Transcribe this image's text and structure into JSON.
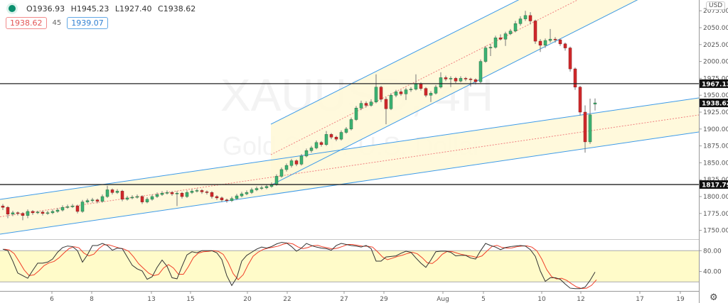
{
  "symbol_watermark": {
    "line1": "XAUUSD, 4H",
    "line2": "Gold Spot / U.S. Dollar"
  },
  "legend": {
    "status_icon": "green-dot-icon",
    "open": "O1936.93",
    "high": "H1945.23",
    "low": "L1927.40",
    "close": "C1938.62",
    "bid": "1938.62",
    "spread": "45",
    "ask": "1939.07"
  },
  "currency": "USD",
  "settings_icon": "gear-icon",
  "colors": {
    "up": "#3bb273",
    "down": "#d0282b",
    "channel_line": "#3d9be9",
    "midline": "#f08080",
    "channel_fill": "#fff8d6",
    "stoch_band": "#fffbc9",
    "k_line": "#333333",
    "d_line": "#f0402a"
  },
  "chart_data": [
    {
      "type": "candlestick",
      "price_axis": {
        "ticks": [
          "2075.00",
          "2050.00",
          "2025.00",
          "2000.00",
          "1975.00",
          "1950.00",
          "1925.00",
          "1900.00",
          "1875.00",
          "1850.00",
          "1825.00",
          "1800.00",
          "1775.00",
          "1750.00"
        ],
        "range": [
          1740,
          2085
        ]
      },
      "time_axis": {
        "ticks": [
          "6",
          "8",
          "13",
          "15",
          "20",
          "22",
          "27",
          "29",
          "Aug",
          "5",
          "10",
          "12",
          "17",
          "19"
        ]
      },
      "horizontal_levels": [
        {
          "label": "1967.13",
          "value": 1967.13
        },
        {
          "label": "1817.79",
          "value": 1817.79
        }
      ],
      "last_price": {
        "label": "1938.62",
        "value": 1938.62
      },
      "candles_ohlc": [
        [
          1786,
          1789,
          1780,
          1784
        ],
        [
          1784,
          1786,
          1768,
          1774
        ],
        [
          1774,
          1779,
          1771,
          1776
        ],
        [
          1776,
          1778,
          1772,
          1775
        ],
        [
          1775,
          1777,
          1765,
          1772
        ],
        [
          1772,
          1781,
          1768,
          1778
        ],
        [
          1778,
          1780,
          1773,
          1776
        ],
        [
          1776,
          1779,
          1774,
          1777
        ],
        [
          1777,
          1779,
          1772,
          1775
        ],
        [
          1775,
          1779,
          1773,
          1776
        ],
        [
          1776,
          1781,
          1774,
          1778
        ],
        [
          1778,
          1783,
          1776,
          1780
        ],
        [
          1780,
          1787,
          1778,
          1784
        ],
        [
          1784,
          1788,
          1782,
          1785
        ],
        [
          1785,
          1789,
          1783,
          1786
        ],
        [
          1786,
          1788,
          1775,
          1778
        ],
        [
          1778,
          1795,
          1776,
          1792
        ],
        [
          1792,
          1797,
          1790,
          1794
        ],
        [
          1794,
          1798,
          1791,
          1795
        ],
        [
          1795,
          1797,
          1790,
          1793
        ],
        [
          1793,
          1803,
          1791,
          1800
        ],
        [
          1800,
          1816,
          1798,
          1810
        ],
        [
          1810,
          1812,
          1803,
          1806
        ],
        [
          1806,
          1811,
          1804,
          1808
        ],
        [
          1808,
          1810,
          1793,
          1796
        ],
        [
          1796,
          1801,
          1794,
          1798
        ],
        [
          1798,
          1802,
          1796,
          1799
        ],
        [
          1799,
          1803,
          1797,
          1800
        ],
        [
          1800,
          1802,
          1789,
          1792
        ],
        [
          1792,
          1799,
          1790,
          1796
        ],
        [
          1796,
          1803,
          1794,
          1800
        ],
        [
          1800,
          1806,
          1798,
          1803
        ],
        [
          1803,
          1808,
          1801,
          1805
        ],
        [
          1805,
          1809,
          1803,
          1806
        ],
        [
          1806,
          1808,
          1801,
          1804
        ],
        [
          1804,
          1808,
          1786,
          1805
        ],
        [
          1805,
          1807,
          1797,
          1800
        ],
        [
          1800,
          1809,
          1798,
          1806
        ],
        [
          1806,
          1811,
          1804,
          1808
        ],
        [
          1808,
          1812,
          1806,
          1809
        ],
        [
          1809,
          1811,
          1804,
          1807
        ],
        [
          1807,
          1809,
          1803,
          1806
        ],
        [
          1806,
          1808,
          1797,
          1800
        ],
        [
          1800,
          1802,
          1795,
          1798
        ],
        [
          1798,
          1800,
          1792,
          1795
        ],
        [
          1795,
          1797,
          1791,
          1794
        ],
        [
          1794,
          1800,
          1792,
          1797
        ],
        [
          1797,
          1804,
          1795,
          1801
        ],
        [
          1801,
          1807,
          1799,
          1804
        ],
        [
          1804,
          1809,
          1802,
          1806
        ],
        [
          1806,
          1813,
          1804,
          1810
        ],
        [
          1810,
          1815,
          1808,
          1812
        ],
        [
          1812,
          1816,
          1810,
          1813
        ],
        [
          1813,
          1818,
          1811,
          1815
        ],
        [
          1815,
          1821,
          1813,
          1818
        ],
        [
          1818,
          1833,
          1816,
          1830
        ],
        [
          1830,
          1843,
          1828,
          1840
        ],
        [
          1840,
          1849,
          1837,
          1846
        ],
        [
          1846,
          1856,
          1843,
          1853
        ],
        [
          1853,
          1855,
          1845,
          1848
        ],
        [
          1848,
          1863,
          1846,
          1860
        ],
        [
          1860,
          1871,
          1858,
          1868
        ],
        [
          1868,
          1875,
          1865,
          1872
        ],
        [
          1872,
          1883,
          1870,
          1880
        ],
        [
          1880,
          1882,
          1874,
          1877
        ],
        [
          1877,
          1897,
          1875,
          1892
        ],
        [
          1892,
          1894,
          1885,
          1888
        ],
        [
          1888,
          1890,
          1882,
          1885
        ],
        [
          1885,
          1898,
          1883,
          1895
        ],
        [
          1895,
          1903,
          1893,
          1900
        ],
        [
          1900,
          1917,
          1898,
          1914
        ],
        [
          1914,
          1934,
          1912,
          1931
        ],
        [
          1931,
          1942,
          1928,
          1938
        ],
        [
          1938,
          1941,
          1932,
          1935
        ],
        [
          1935,
          1944,
          1933,
          1940
        ],
        [
          1940,
          1981,
          1938,
          1962
        ],
        [
          1962,
          1964,
          1940,
          1944
        ],
        [
          1944,
          1947,
          1907,
          1930
        ],
        [
          1930,
          1953,
          1928,
          1950
        ],
        [
          1950,
          1958,
          1947,
          1955
        ],
        [
          1955,
          1958,
          1949,
          1952
        ],
        [
          1952,
          1961,
          1943,
          1958
        ],
        [
          1958,
          1962,
          1955,
          1959
        ],
        [
          1959,
          1981,
          1957,
          1967
        ],
        [
          1967,
          1969,
          1957,
          1960
        ],
        [
          1960,
          1962,
          1947,
          1950
        ],
        [
          1950,
          1956,
          1940,
          1953
        ],
        [
          1953,
          1965,
          1951,
          1962
        ],
        [
          1962,
          1984,
          1960,
          1976
        ],
        [
          1976,
          1979,
          1971,
          1974
        ],
        [
          1974,
          1978,
          1962,
          1975
        ],
        [
          1975,
          1977,
          1968,
          1971
        ],
        [
          1971,
          1978,
          1969,
          1975
        ],
        [
          1975,
          1977,
          1971,
          1974
        ],
        [
          1974,
          1976,
          1963,
          1973
        ],
        [
          1973,
          1975,
          1966,
          1970
        ],
        [
          1970,
          2003,
          1968,
          2000
        ],
        [
          2000,
          2023,
          1998,
          2020
        ],
        [
          2020,
          2026,
          2008,
          2021
        ],
        [
          2021,
          2038,
          2019,
          2035
        ],
        [
          2035,
          2040,
          2031,
          2033
        ],
        [
          2033,
          2044,
          2023,
          2041
        ],
        [
          2041,
          2048,
          2039,
          2045
        ],
        [
          2045,
          2060,
          2043,
          2056
        ],
        [
          2056,
          2067,
          2053,
          2063
        ],
        [
          2063,
          2075,
          2060,
          2068
        ],
        [
          2068,
          2073,
          2055,
          2060
        ],
        [
          2060,
          2062,
          2026,
          2030
        ],
        [
          2030,
          2033,
          2014,
          2024
        ],
        [
          2024,
          2034,
          2020,
          2031
        ],
        [
          2031,
          2048,
          2028,
          2033
        ],
        [
          2033,
          2036,
          2028,
          2032
        ],
        [
          2032,
          2034,
          2023,
          2026
        ],
        [
          2026,
          2028,
          2016,
          2020
        ],
        [
          2020,
          2022,
          1985,
          1989
        ],
        [
          1989,
          1991,
          1958,
          1962
        ],
        [
          1962,
          1964,
          1920,
          1925
        ],
        [
          1925,
          1935,
          1865,
          1881
        ],
        [
          1881,
          1945,
          1878,
          1921
        ],
        [
          1936.93,
          1945.23,
          1927.4,
          1938.62
        ]
      ]
    },
    {
      "type": "line",
      "indicator": "stochastic",
      "y_ticks": [
        "80.00",
        "40.00"
      ],
      "band": [
        20,
        80
      ],
      "range": [
        0,
        100
      ],
      "k": [
        83,
        80,
        60,
        37,
        32,
        27,
        42,
        56,
        56,
        58,
        64,
        77,
        86,
        89,
        88,
        80,
        58,
        72,
        90,
        90,
        94,
        90,
        81,
        85,
        84,
        68,
        52,
        45,
        41,
        25,
        30,
        48,
        62,
        50,
        28,
        26,
        50,
        72,
        78,
        76,
        80,
        80,
        80,
        76,
        63,
        32,
        13,
        28,
        60,
        71,
        77,
        83,
        87,
        85,
        88,
        93,
        96,
        95,
        88,
        79,
        85,
        94,
        90,
        87,
        85,
        84,
        81,
        90,
        94,
        92,
        90,
        89,
        87,
        90,
        84,
        60,
        60,
        68,
        69,
        70,
        75,
        79,
        77,
        66,
        56,
        48,
        62,
        78,
        79,
        79,
        77,
        70,
        71,
        71,
        66,
        64,
        80,
        94,
        90,
        87,
        82,
        86,
        88,
        89,
        90,
        89,
        82,
        69,
        41,
        21,
        28,
        28,
        25,
        16,
        8,
        7,
        7,
        10,
        23,
        39
      ]
    }
  ]
}
